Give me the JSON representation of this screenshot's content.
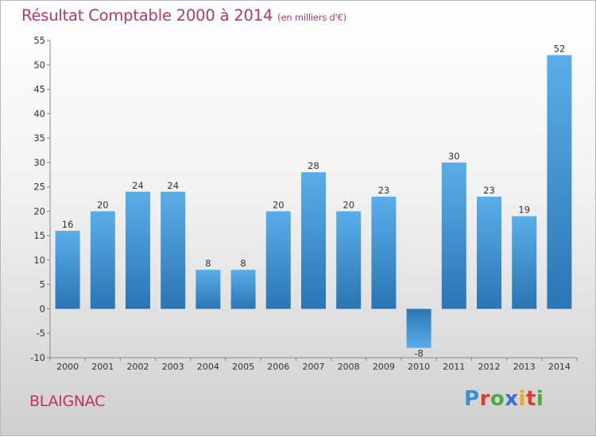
{
  "header": {
    "title": "Résultat Comptable 2000 à 2014",
    "subtitle": "(en milliers d'€)"
  },
  "footer": {
    "town": "BLAIGNAC",
    "brand": "Proxiti"
  },
  "colors": {
    "bar_top": "#5aaee8",
    "bar_bottom": "#2a75b5",
    "title": "#b03a6a"
  },
  "chart_data": {
    "type": "bar",
    "title": "Résultat Comptable 2000 à 2014",
    "subtitle": "(en milliers d'€)",
    "xlabel": "",
    "ylabel": "",
    "categories": [
      "2000",
      "2001",
      "2002",
      "2003",
      "2004",
      "2005",
      "2006",
      "2007",
      "2008",
      "2009",
      "2010",
      "2011",
      "2012",
      "2013",
      "2014"
    ],
    "values": [
      16,
      20,
      24,
      24,
      8,
      8,
      20,
      28,
      20,
      23,
      -8,
      30,
      23,
      19,
      52
    ],
    "ylim": [
      -10,
      55
    ],
    "yticks": [
      55,
      50,
      45,
      40,
      35,
      30,
      25,
      20,
      15,
      10,
      5,
      0,
      -5,
      -10
    ],
    "grid": false,
    "legend": "none"
  }
}
